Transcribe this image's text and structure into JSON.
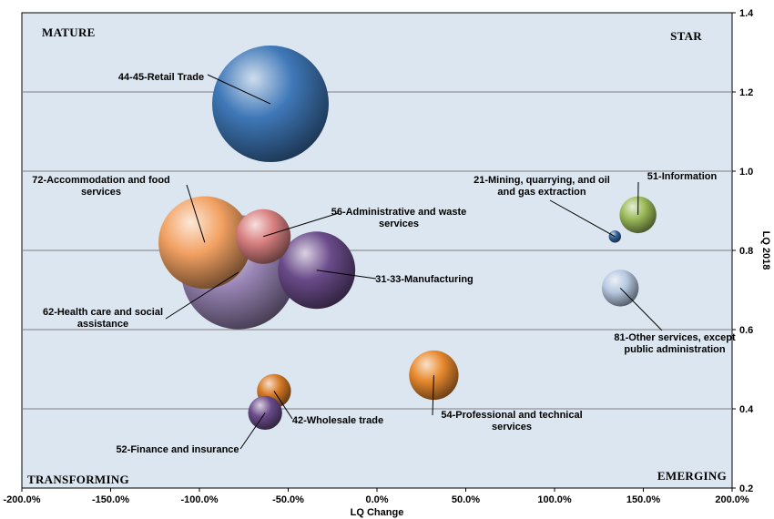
{
  "chart_data": {
    "type": "bubble",
    "xlabel": "LQ Change",
    "ylabel": "LQ 2018",
    "xlim": [
      -2.0,
      2.0
    ],
    "ylim": [
      0.2,
      1.4
    ],
    "x_ticks": [
      -2.0,
      -1.5,
      -1.0,
      -0.5,
      0.0,
      0.5,
      1.0,
      1.5,
      2.0
    ],
    "x_tick_labels": [
      "-200.0%",
      "-150.0%",
      "-100.0%",
      "-50.0%",
      "0.0%",
      "50.0%",
      "100.0%",
      "150.0%",
      "200.0%"
    ],
    "y_ticks": [
      0.2,
      0.4,
      0.6,
      0.8,
      1.0,
      1.2,
      1.4
    ],
    "y_tick_labels": [
      "0.2",
      "0.4",
      "0.6",
      "0.8",
      "1.0",
      "1.2",
      "1.4"
    ],
    "gridlines": "horizontal",
    "y_axis_position": "right",
    "background_color": "#dce6f0",
    "quadrants": [
      {
        "name": "MATURE",
        "position": "top-left"
      },
      {
        "name": "STAR",
        "position": "top-right"
      },
      {
        "name": "TRANSFORMING",
        "position": "bottom-left"
      },
      {
        "name": "EMERGING",
        "position": "bottom-right"
      }
    ],
    "bubbles": [
      {
        "label": [
          "44-45-Retail Trade"
        ],
        "x": -0.6,
        "y": 1.17,
        "size": 1.0,
        "color": "#3f78b8"
      },
      {
        "label": [
          "56-Administrative and waste",
          "services"
        ],
        "x": -0.64,
        "y": 0.835,
        "size": 0.22,
        "color": "#d98080"
      },
      {
        "label": [
          "31-33-Manufacturing"
        ],
        "x": -0.34,
        "y": 0.75,
        "size": 0.44,
        "color": "#6a4b8a"
      },
      {
        "label": [
          "62-Health care and social",
          "assistance"
        ],
        "x": -0.78,
        "y": 0.745,
        "size": 0.96,
        "color": "#9a86b6"
      },
      {
        "label": [
          "72-Accommodation and food",
          "services"
        ],
        "x": -0.97,
        "y": 0.82,
        "size": 0.63,
        "color": "#f2a162"
      },
      {
        "label": [
          "21-Mining, quarrying, and oil",
          "and gas extraction"
        ],
        "x": 1.34,
        "y": 0.835,
        "size": 0.011,
        "color": "#2f5f96"
      },
      {
        "label": [
          "51-Information"
        ],
        "x": 1.47,
        "y": 0.89,
        "size": 0.1,
        "color": "#9bbb59"
      },
      {
        "label": [
          "81-Other services, except",
          "public administration"
        ],
        "x": 1.37,
        "y": 0.705,
        "size": 0.1,
        "color": "#b6c8e0"
      },
      {
        "label": [
          "54-Professional and technical",
          "services"
        ],
        "x": 0.32,
        "y": 0.485,
        "size": 0.18,
        "color": "#e8892e"
      },
      {
        "label": [
          "42-Wholesale trade"
        ],
        "x": -0.58,
        "y": 0.445,
        "size": 0.085,
        "color": "#d67a26"
      },
      {
        "label": [
          "52-Finance and insurance"
        ],
        "x": -0.63,
        "y": 0.39,
        "size": 0.085,
        "color": "#6a4b8a"
      }
    ]
  }
}
